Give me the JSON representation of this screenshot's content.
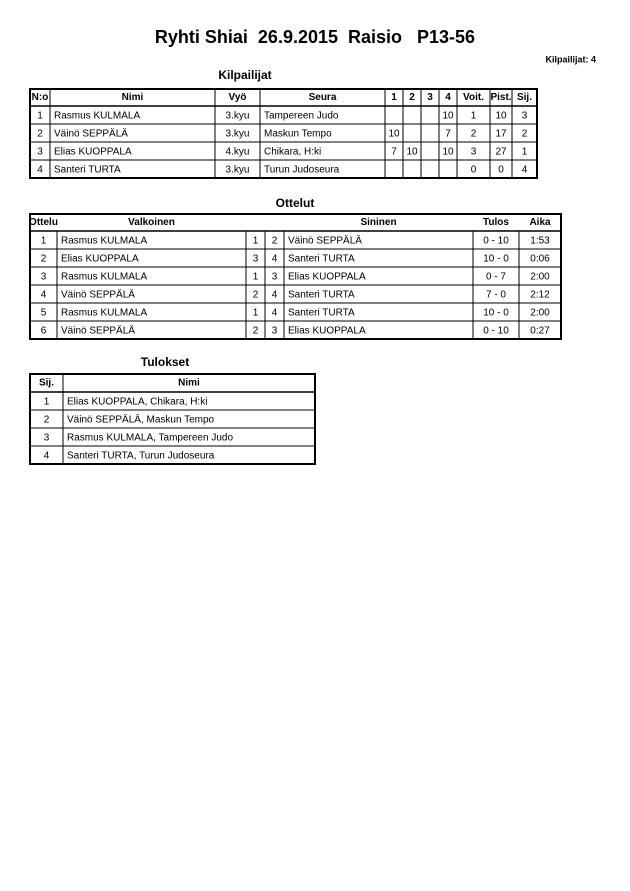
{
  "header": {
    "title": "Ryhti Shiai  26.9.2015  Raisio   P13-56",
    "count": "Kilpailijat: 4"
  },
  "competitors": {
    "title": "Kilpailijat",
    "columns": [
      "N:o",
      "Nimi",
      "Vyö",
      "Seura",
      "1",
      "2",
      "3",
      "4",
      "Voit.",
      "Pist.",
      "Sij."
    ],
    "rows": [
      [
        1,
        "Rasmus KULMALA",
        "3.kyu",
        "Tampereen Judo",
        null,
        null,
        null,
        10,
        1,
        10,
        3
      ],
      [
        2,
        "Väinö SEPPÄLÄ",
        "3.kyu",
        "Maskun Tempo",
        10,
        null,
        null,
        7,
        2,
        17,
        2
      ],
      [
        3,
        "Elias KUOPPALA",
        "4.kyu",
        "Chikara, H:ki",
        7,
        10,
        null,
        10,
        3,
        27,
        1
      ],
      [
        4,
        "Santeri TURTA",
        "3.kyu",
        "Turun Judoseura",
        null,
        null,
        null,
        null,
        0,
        0,
        4
      ]
    ]
  },
  "matches": {
    "title": "Ottelut",
    "columns": [
      "Ottelu",
      "Valkoinen",
      null,
      null,
      "Sininen",
      "Tulos",
      "Aika"
    ],
    "rows": [
      [
        1,
        "Rasmus KULMALA",
        1,
        2,
        "Väinö SEPPÄLÄ",
        "0 - 10",
        "1:53"
      ],
      [
        2,
        "Elias KUOPPALA",
        3,
        4,
        "Santeri TURTA",
        "10 - 0",
        "0:06"
      ],
      [
        3,
        "Rasmus KULMALA",
        1,
        3,
        "Elias KUOPPALA",
        "0 - 7",
        "2:00"
      ],
      [
        4,
        "Väinö SEPPÄLÄ",
        2,
        4,
        "Santeri TURTA",
        "7 - 0",
        "2:12"
      ],
      [
        5,
        "Rasmus KULMALA",
        1,
        4,
        "Santeri TURTA",
        "10 - 0",
        "2:00"
      ],
      [
        6,
        "Väinö SEPPÄLÄ",
        2,
        3,
        "Elias KUOPPALA",
        "0 - 10",
        "0:27"
      ]
    ]
  },
  "results": {
    "title": "Tulokset",
    "columns": [
      "Sij.",
      "Nimi"
    ],
    "rows": [
      [
        1,
        "Elias KUOPPALA, Chikara, H:ki"
      ],
      [
        2,
        "Väinö SEPPÄLÄ, Maskun Tempo"
      ],
      [
        3,
        "Rasmus KULMALA, Tampereen Judo"
      ],
      [
        4,
        "Santeri TURTA, Turun Judoseura"
      ]
    ]
  }
}
